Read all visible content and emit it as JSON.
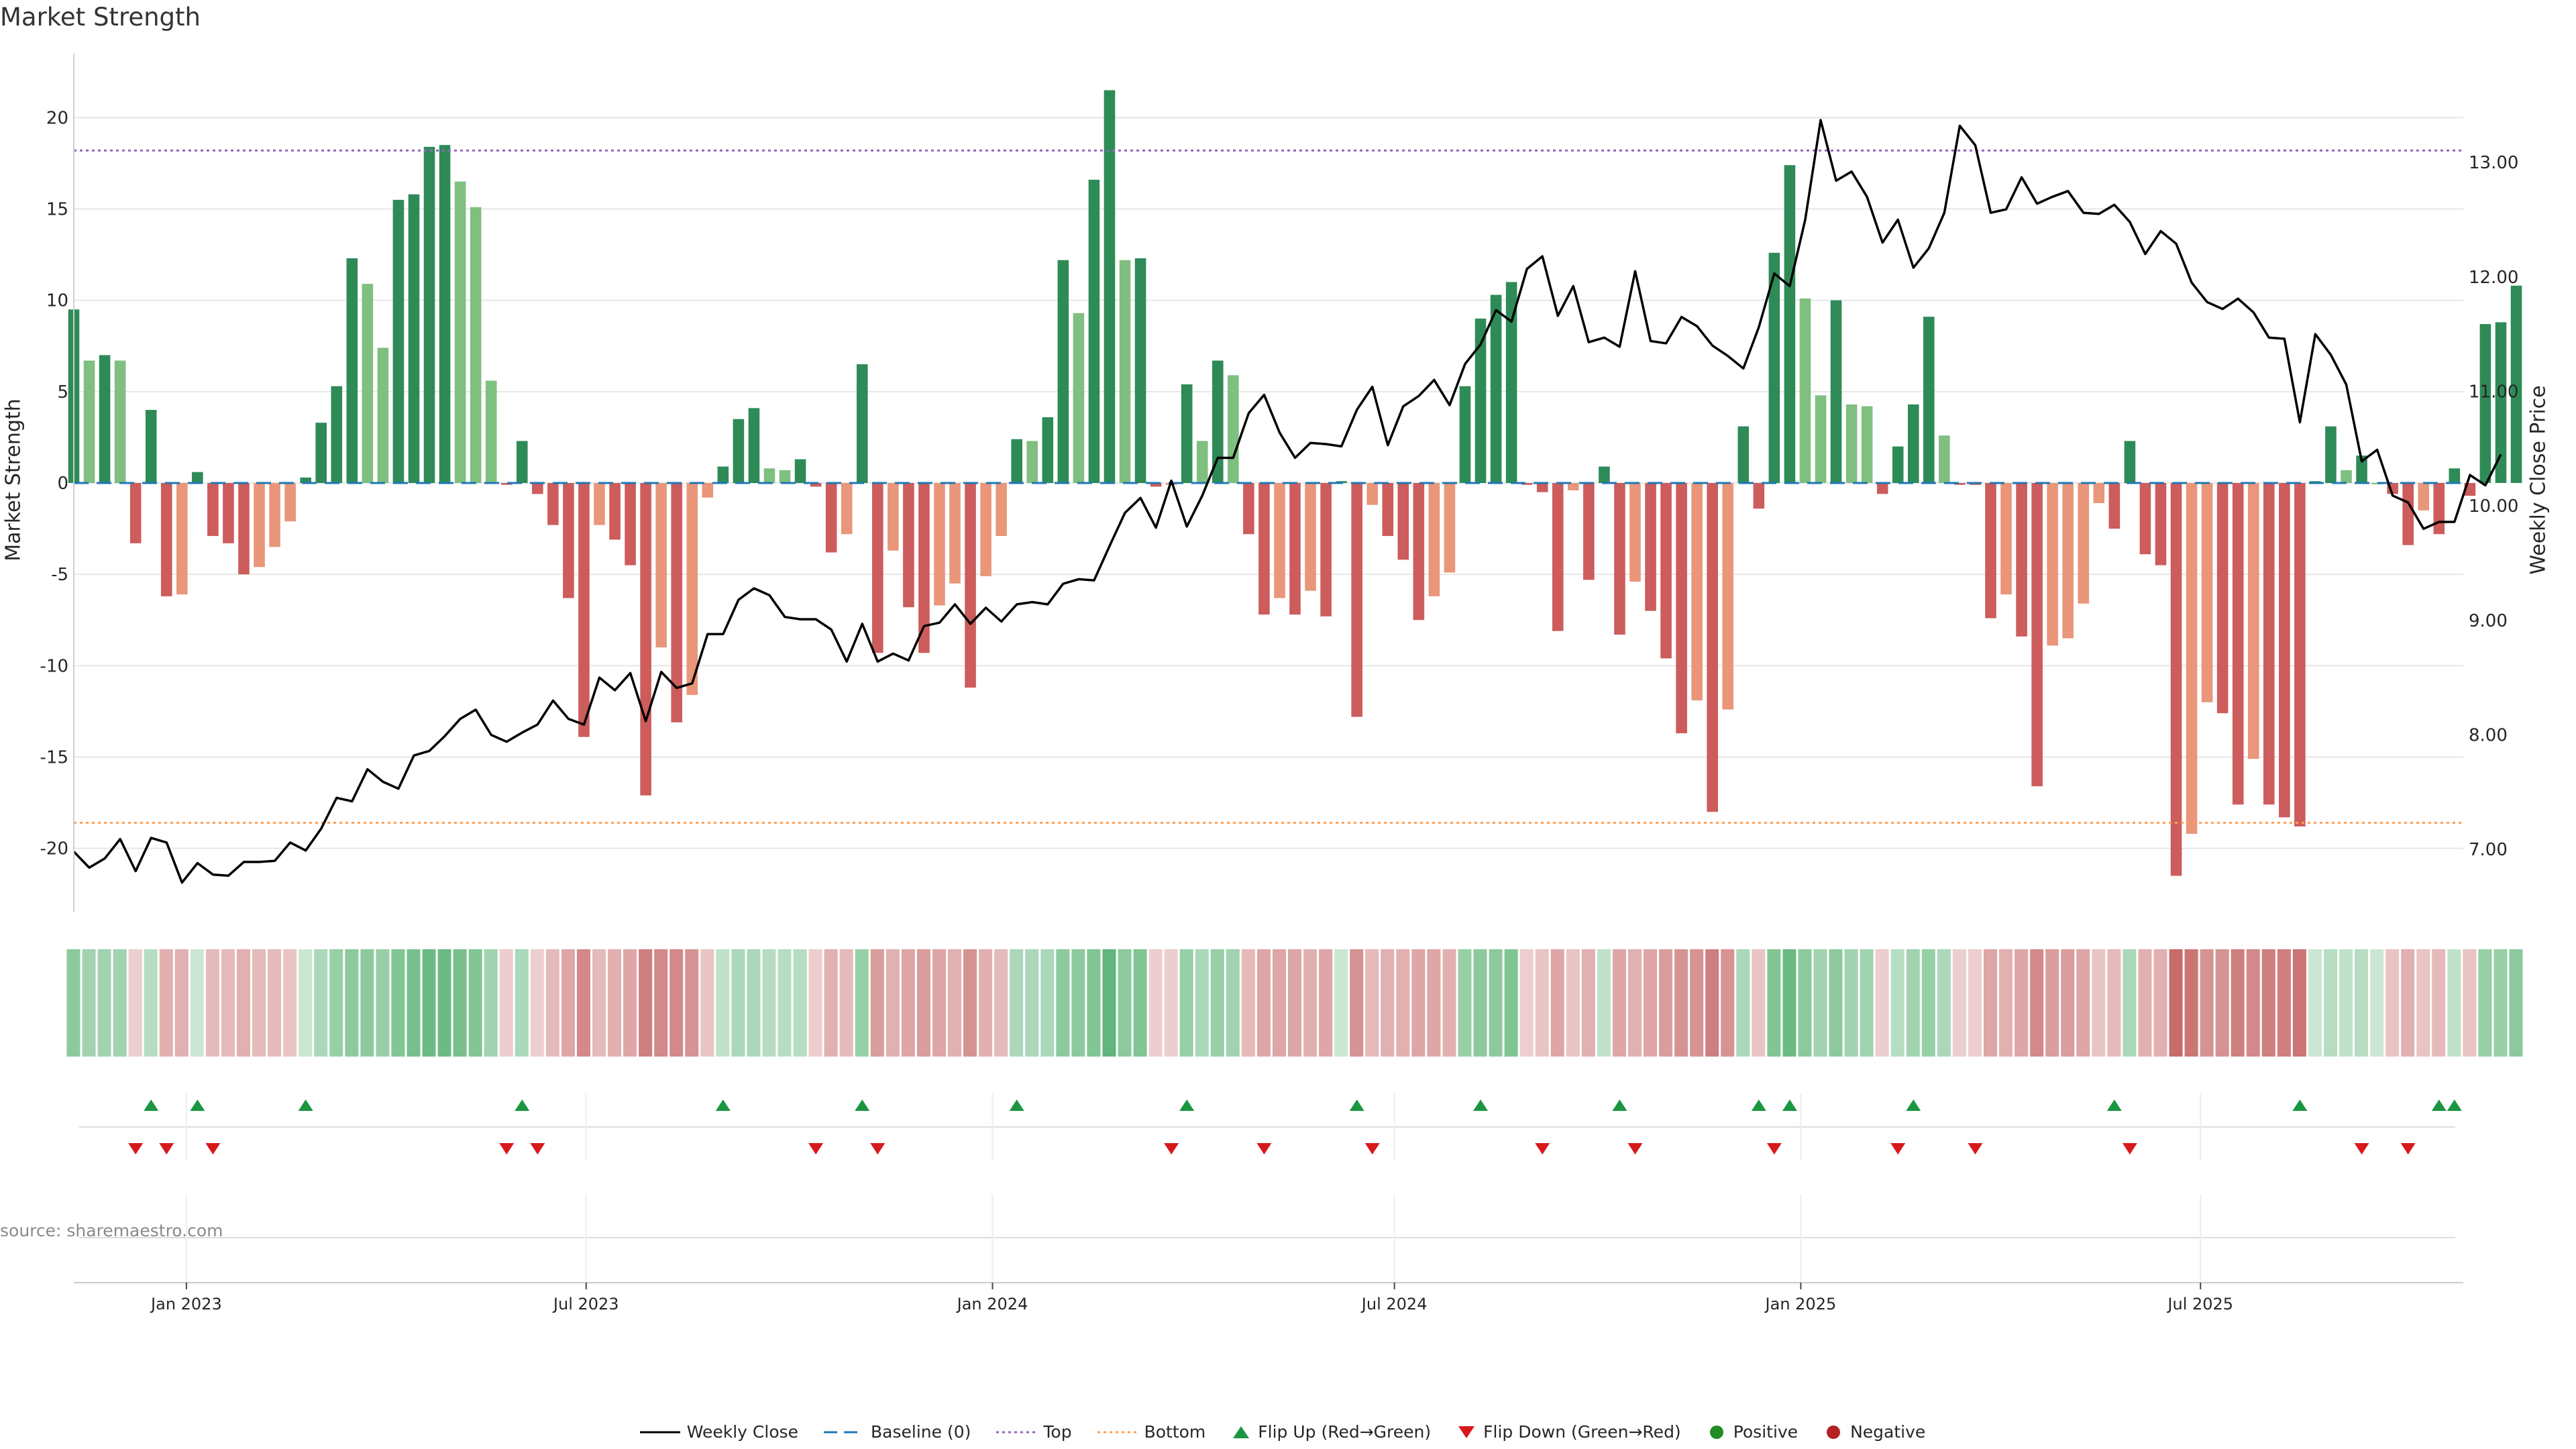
{
  "title": "Market Strength",
  "source_note": "source: sharemaestro.com",
  "colors": {
    "strong_green": "#2e8b57",
    "light_green": "#7fbf7f",
    "strong_red": "#cd5c5c",
    "light_red": "#e9967a",
    "close_line": "#000000",
    "baseline": "#1f77b4",
    "top_line": "#9467bd",
    "bottom_line": "#ff9f55",
    "flip_up": "#1a9641",
    "flip_down": "#d7191c",
    "positive_dot": "#228b22",
    "negative_dot": "#b22222"
  },
  "legend": {
    "weekly_close": "Weekly Close",
    "baseline": "Baseline (0)",
    "top": "Top",
    "bottom": "Bottom",
    "flip_up": "Flip Up (Red→Green)",
    "flip_down": "Flip Down (Green→Red)",
    "positive": "Positive",
    "negative": "Negative"
  },
  "chart_data": {
    "type": "bar",
    "title": "Market Strength",
    "ylabel": "Market Strength",
    "y2label": "Weekly Close Price",
    "ylim": [
      -23.5,
      23.5
    ],
    "y2lim": [
      6.45,
      13.95
    ],
    "xlim": [
      "2022-11-11",
      "2025-10-28"
    ],
    "yticks": [
      -20,
      -15,
      -10,
      -5,
      0,
      5,
      10,
      15,
      20
    ],
    "y2ticks": [
      "7.00",
      "8.00",
      "9.00",
      "10.00",
      "11.00",
      "12.00",
      "13.00"
    ],
    "x_ticks": [
      {
        "date": "2023-01-01",
        "label": "Jan 2023"
      },
      {
        "date": "2023-07-01",
        "label": "Jul 2023"
      },
      {
        "date": "2024-01-01",
        "label": "Jan 2024"
      },
      {
        "date": "2024-07-01",
        "label": "Jul 2024"
      },
      {
        "date": "2025-01-01",
        "label": "Jan 2025"
      },
      {
        "date": "2025-07-01",
        "label": "Jul 2025"
      }
    ],
    "first_week": "2022-11-11",
    "week_step_days": 7,
    "top_level": 18.2,
    "bottom_level": -18.6,
    "baseline": 0,
    "strength": [
      9.5,
      6.7,
      7.0,
      6.7,
      -3.3,
      4.0,
      -6.2,
      -6.1,
      0.6,
      -2.9,
      -3.3,
      -5.0,
      -4.6,
      -3.5,
      -2.1,
      0.3,
      3.3,
      5.3,
      12.3,
      10.9,
      7.4,
      15.5,
      15.8,
      18.4,
      18.5,
      16.5,
      15.1,
      5.6,
      -0.1,
      2.3,
      -0.6,
      -2.3,
      -6.3,
      -13.9,
      -2.3,
      -3.1,
      -4.5,
      -17.1,
      -9.0,
      -13.1,
      -11.6,
      -0.8,
      0.9,
      3.5,
      4.1,
      0.8,
      0.7,
      1.3,
      -0.2,
      -3.8,
      -2.8,
      6.5,
      -9.3,
      -3.7,
      -6.8,
      -9.3,
      -6.7,
      -5.5,
      -11.2,
      -5.1,
      -2.9,
      2.4,
      2.3,
      3.6,
      12.2,
      9.3,
      16.6,
      21.5,
      12.2,
      12.3,
      -0.2,
      -0.1,
      5.4,
      2.3,
      6.7,
      5.9,
      -2.8,
      -7.2,
      -6.3,
      -7.2,
      -5.9,
      -7.3,
      0.1,
      -12.8,
      -1.2,
      -2.9,
      -4.2,
      -7.5,
      -6.2,
      -4.9,
      5.3,
      9.0,
      10.3,
      11.0,
      -0.1,
      -0.5,
      -8.1,
      -0.4,
      -5.3,
      0.9,
      -8.3,
      -5.4,
      -7.0,
      -9.6,
      -13.7,
      -11.9,
      -18.0,
      -12.4,
      3.1,
      -1.4,
      12.6,
      17.4,
      10.1,
      4.8,
      10.0,
      4.3,
      4.2,
      -0.6,
      2.0,
      4.3,
      9.1,
      2.6,
      -0.1,
      -0.1,
      -7.4,
      -6.1,
      -8.4,
      -16.6,
      -8.9,
      -8.5,
      -6.6,
      -1.1,
      -2.5,
      2.3,
      -3.9,
      -4.5,
      -21.5,
      -19.2,
      -12.0,
      -12.6,
      -17.6,
      -15.1,
      -17.6,
      -18.3,
      -18.8,
      0.1,
      3.1,
      0.7,
      1.5,
      0.0,
      -0.6,
      -3.4,
      -1.5,
      -2.8,
      0.8,
      -0.7,
      8.7,
      8.8,
      10.8
    ],
    "weekly_close": [
      6.98,
      6.84,
      6.92,
      7.09,
      6.81,
      7.1,
      7.06,
      6.71,
      6.88,
      6.78,
      6.77,
      6.89,
      6.89,
      6.9,
      7.06,
      6.99,
      7.18,
      7.45,
      7.42,
      7.7,
      7.59,
      7.53,
      7.82,
      7.86,
      7.99,
      8.14,
      8.22,
      8.0,
      7.94,
      8.02,
      8.09,
      8.3,
      8.14,
      8.09,
      8.5,
      8.39,
      8.54,
      8.12,
      8.55,
      8.41,
      8.45,
      8.88,
      8.88,
      9.18,
      9.28,
      9.22,
      9.03,
      9.01,
      9.01,
      8.92,
      8.64,
      8.97,
      8.64,
      8.71,
      8.65,
      8.95,
      8.98,
      9.14,
      8.97,
      9.11,
      8.99,
      9.14,
      9.16,
      9.14,
      9.32,
      9.36,
      9.35,
      9.65,
      9.94,
      10.07,
      9.81,
      10.22,
      9.82,
      10.09,
      10.42,
      10.42,
      10.81,
      10.97,
      10.64,
      10.42,
      10.55,
      10.54,
      10.52,
      10.84,
      11.04,
      10.53,
      10.87,
      10.96,
      11.1,
      10.88,
      11.24,
      11.41,
      11.71,
      11.61,
      12.07,
      12.18,
      11.66,
      11.92,
      11.43,
      11.47,
      11.39,
      12.05,
      11.44,
      11.42,
      11.65,
      11.57,
      11.4,
      11.31,
      11.2,
      11.56,
      12.03,
      11.92,
      12.5,
      13.37,
      12.84,
      12.92,
      12.7,
      12.3,
      12.5,
      12.08,
      12.25,
      12.56,
      13.32,
      13.15,
      12.56,
      12.59,
      12.87,
      12.64,
      12.7,
      12.75,
      12.56,
      12.55,
      12.63,
      12.48,
      12.2,
      12.4,
      12.29,
      11.95,
      11.78,
      11.72,
      11.81,
      11.69,
      11.47,
      11.46,
      10.73,
      11.5,
      11.32,
      11.06,
      10.39,
      10.49,
      10.09,
      10.03,
      9.8,
      9.86,
      9.86,
      10.27,
      10.18,
      10.45
    ],
    "flip_up_weeks": [
      5,
      8,
      15,
      29,
      42,
      51,
      61,
      72,
      83,
      91,
      100,
      109,
      111,
      119,
      132,
      144,
      153,
      154
    ],
    "flip_down_weeks": [
      4,
      6,
      9,
      28,
      30,
      48,
      52,
      71,
      77,
      84,
      95,
      101,
      110,
      118,
      123,
      133,
      148,
      151
    ],
    "strip_intensity": [
      0.55,
      0.45,
      0.45,
      0.45,
      0.25,
      0.35,
      0.4,
      0.4,
      0.25,
      0.35,
      0.35,
      0.4,
      0.35,
      0.35,
      0.3,
      0.25,
      0.4,
      0.5,
      0.55,
      0.55,
      0.5,
      0.6,
      0.65,
      0.7,
      0.7,
      0.65,
      0.6,
      0.45,
      0.25,
      0.4,
      0.25,
      0.35,
      0.45,
      0.6,
      0.35,
      0.4,
      0.45,
      0.65,
      0.6,
      0.6,
      0.55,
      0.3,
      0.3,
      0.4,
      0.4,
      0.35,
      0.35,
      0.35,
      0.25,
      0.4,
      0.35,
      0.5,
      0.5,
      0.4,
      0.45,
      0.5,
      0.45,
      0.4,
      0.55,
      0.4,
      0.35,
      0.4,
      0.4,
      0.4,
      0.55,
      0.55,
      0.6,
      0.75,
      0.55,
      0.6,
      0.25,
      0.25,
      0.5,
      0.4,
      0.5,
      0.45,
      0.35,
      0.45,
      0.45,
      0.45,
      0.4,
      0.45,
      0.25,
      0.55,
      0.35,
      0.4,
      0.4,
      0.45,
      0.45,
      0.4,
      0.5,
      0.55,
      0.55,
      0.6,
      0.25,
      0.3,
      0.45,
      0.3,
      0.4,
      0.3,
      0.45,
      0.4,
      0.45,
      0.5,
      0.55,
      0.55,
      0.65,
      0.55,
      0.4,
      0.3,
      0.6,
      0.7,
      0.55,
      0.45,
      0.55,
      0.45,
      0.45,
      0.25,
      0.35,
      0.45,
      0.5,
      0.4,
      0.25,
      0.25,
      0.45,
      0.4,
      0.45,
      0.6,
      0.5,
      0.5,
      0.45,
      0.3,
      0.35,
      0.4,
      0.4,
      0.4,
      0.75,
      0.7,
      0.55,
      0.55,
      0.65,
      0.6,
      0.65,
      0.65,
      0.7,
      0.25,
      0.35,
      0.3,
      0.35,
      0.25,
      0.3,
      0.4,
      0.3,
      0.35,
      0.3,
      0.3,
      0.5,
      0.5,
      0.55
    ]
  }
}
